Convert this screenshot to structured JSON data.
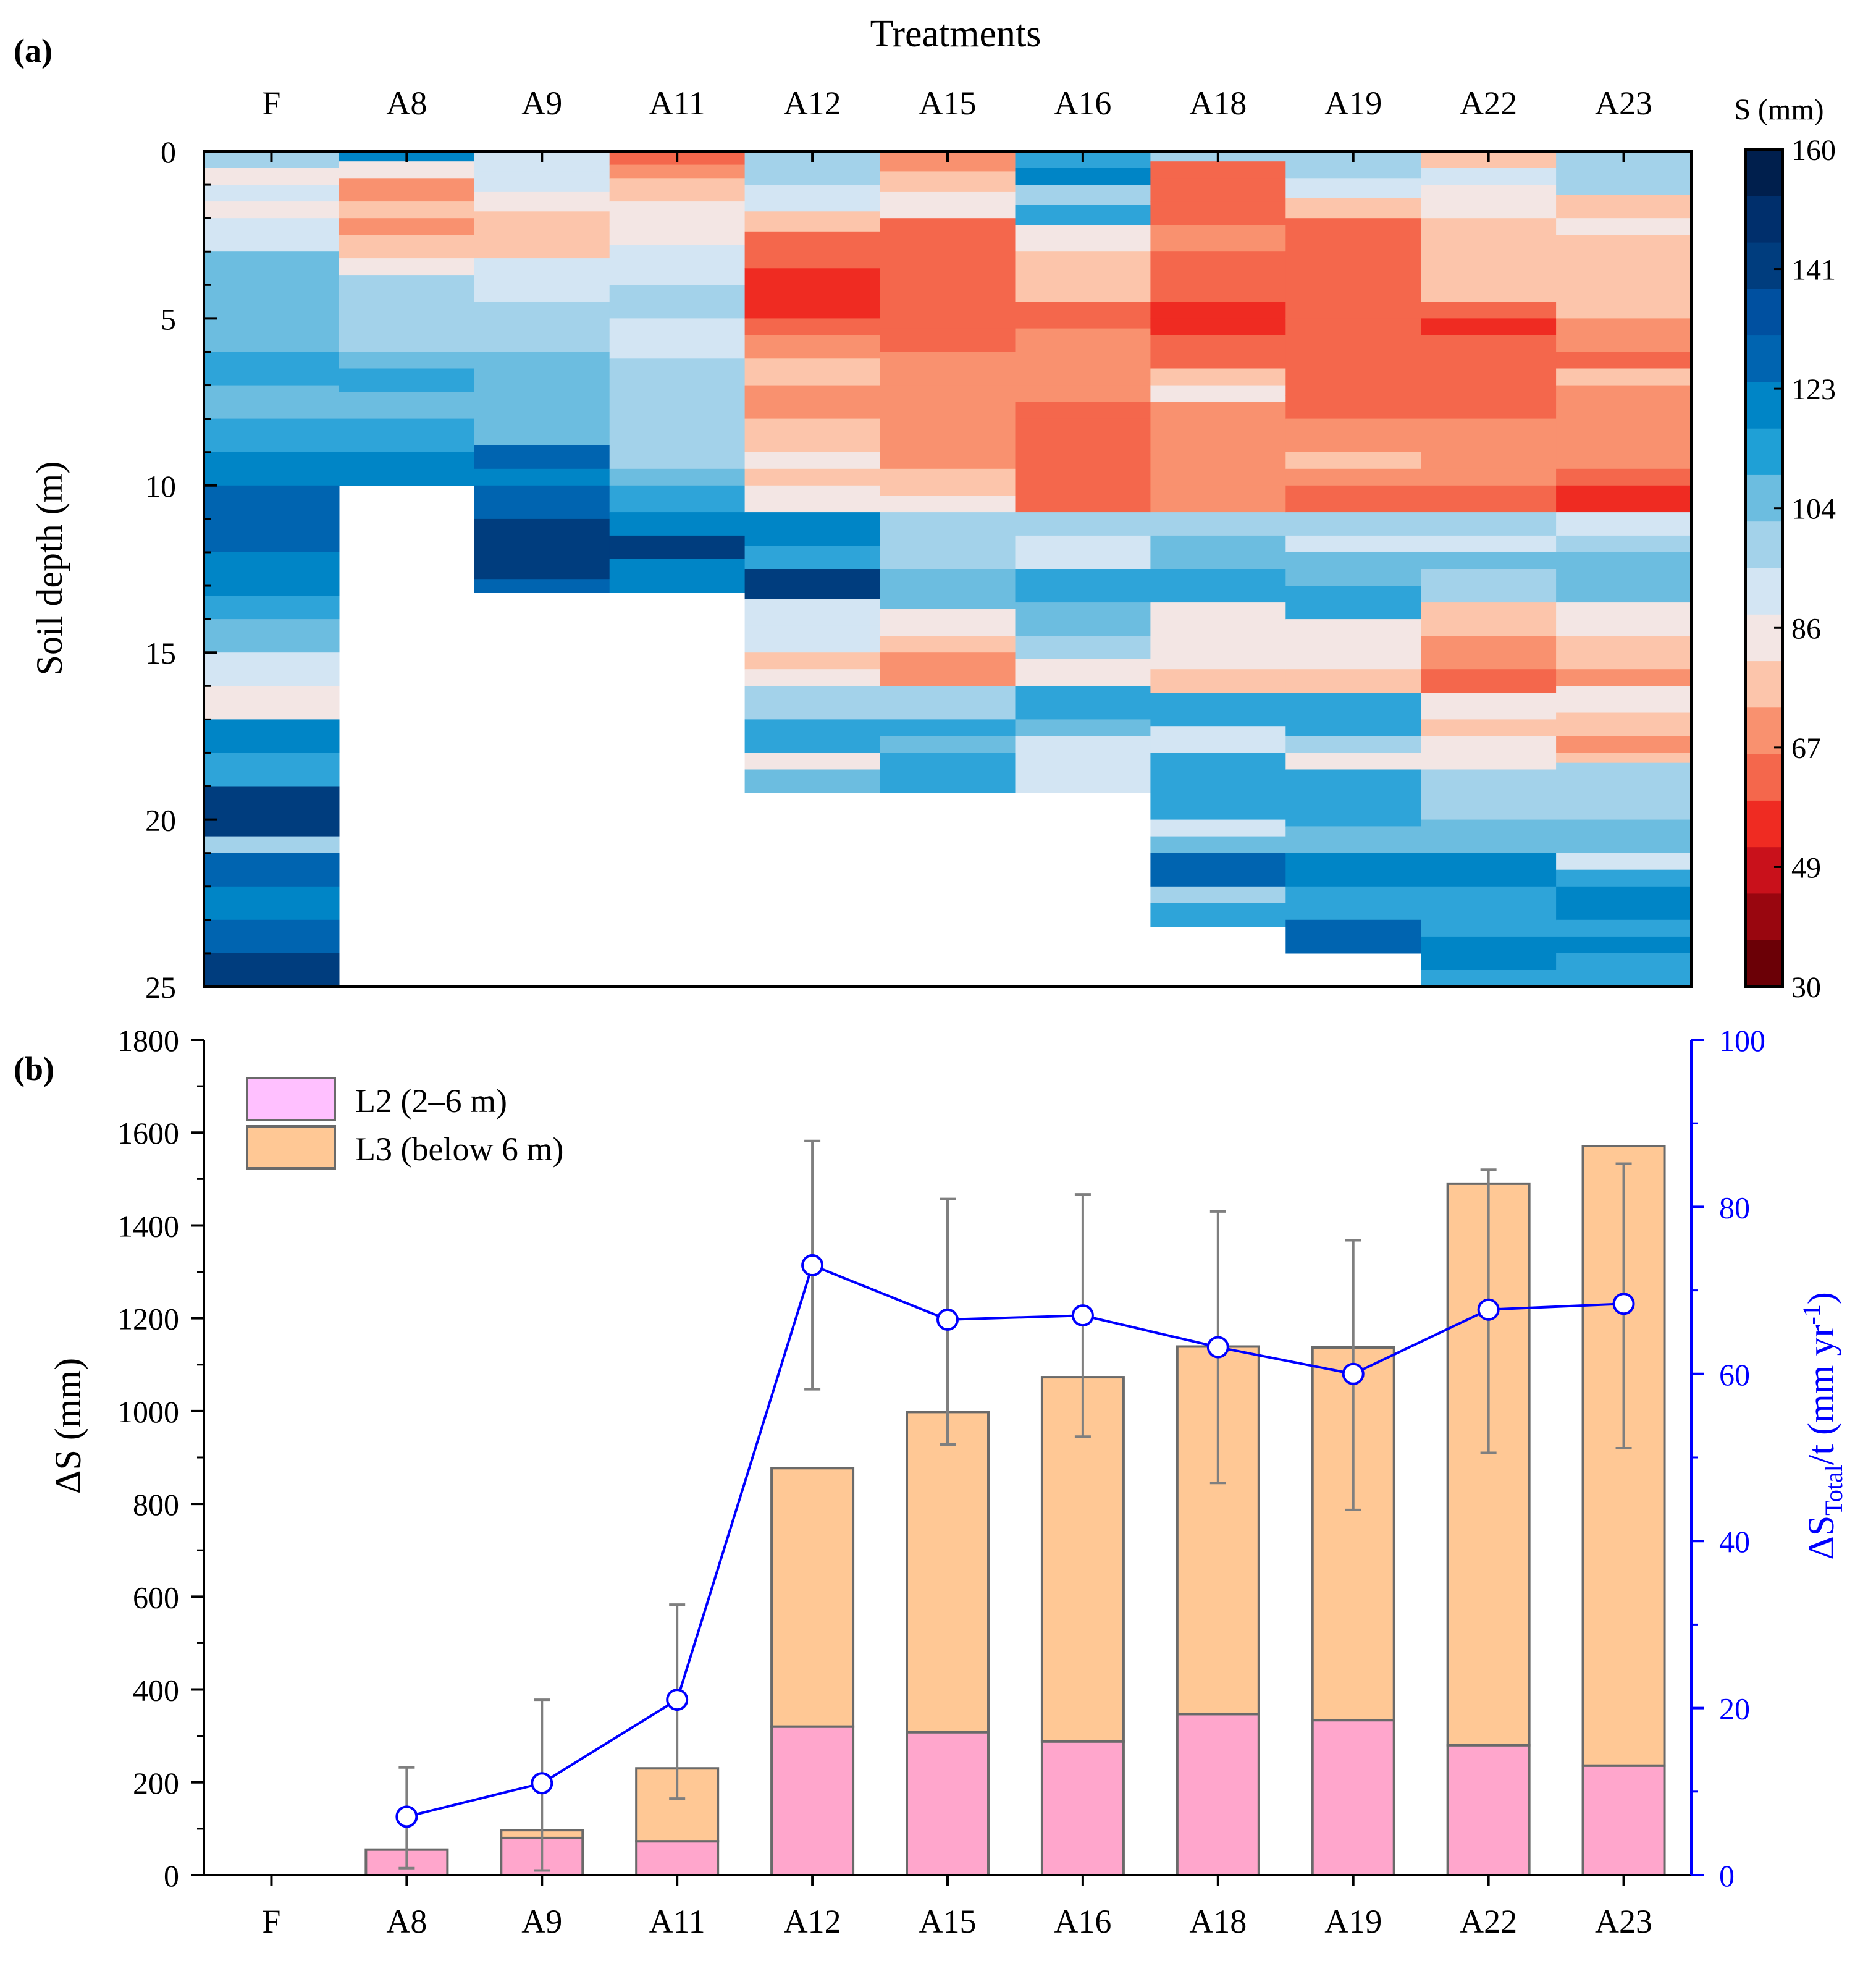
{
  "colors": {
    "l2": "#ffa6cc",
    "l3": "#ffc895",
    "bar_edge": "#6a6a6a",
    "err": "#7f7f7f",
    "line": "#0000ff",
    "colorbar": [
      "#ef2b22",
      "#f4674c",
      "#f9916f",
      "#fcc5ab",
      "#f3e6e4",
      "#d3e5f3",
      "#a3d2ea",
      "#6cbde0",
      "#2ea4d9",
      "#0085c6",
      "#0064b0",
      "#003d7e"
    ]
  },
  "chart_data": [
    {
      "type": "heatmap",
      "panel_label": "(a)",
      "title": "Treatments",
      "categories": [
        "F",
        "A8",
        "A9",
        "A11",
        "A12",
        "A15",
        "A16",
        "A18",
        "A19",
        "A22",
        "A23"
      ],
      "ylabel": "Soil depth (m)",
      "yticks": [
        0,
        5,
        10,
        15,
        20,
        25
      ],
      "ylim": [
        25,
        0
      ],
      "max_depth_m": [
        25,
        10,
        13.2,
        13.2,
        19.2,
        19.2,
        19.2,
        23.2,
        24,
        25,
        25
      ],
      "colorbar": {
        "title": "S (mm)",
        "ticks": [
          "160",
          "141",
          "123",
          "104",
          "86",
          "67",
          "49",
          "30"
        ],
        "range": [
          30,
          160
        ]
      },
      "profiles": [
        [
          [
            0,
            105
          ],
          [
            0.5,
            90
          ],
          [
            1,
            100
          ],
          [
            1.5,
            92
          ],
          [
            2,
            97
          ],
          [
            3,
            110
          ],
          [
            4,
            112
          ],
          [
            5.2,
            115
          ],
          [
            6,
            118
          ],
          [
            7,
            112
          ],
          [
            8,
            120
          ],
          [
            9,
            126
          ],
          [
            10,
            135
          ],
          [
            11,
            132
          ],
          [
            12,
            128
          ],
          [
            13.3,
            118
          ],
          [
            14,
            112
          ],
          [
            15,
            96
          ],
          [
            16,
            88
          ],
          [
            17,
            125
          ],
          [
            18,
            118
          ],
          [
            19,
            138
          ],
          [
            20,
            140
          ],
          [
            20.5,
            108
          ],
          [
            21,
            135
          ],
          [
            22,
            126
          ],
          [
            23,
            132
          ],
          [
            24,
            138
          ],
          [
            25,
            138
          ]
        ],
        [
          [
            0,
            128
          ],
          [
            0.3,
            90
          ],
          [
            0.8,
            75
          ],
          [
            1.5,
            80
          ],
          [
            2,
            78
          ],
          [
            2.5,
            84
          ],
          [
            3.2,
            90
          ],
          [
            3.7,
            104
          ],
          [
            5,
            106
          ],
          [
            6,
            112
          ],
          [
            6.5,
            118
          ],
          [
            7.2,
            114
          ],
          [
            8,
            116
          ],
          [
            9,
            124
          ],
          [
            10,
            124
          ]
        ],
        [
          [
            0,
            95
          ],
          [
            0.6,
            100
          ],
          [
            1.2,
            88
          ],
          [
            1.8,
            84
          ],
          [
            2.5,
            80
          ],
          [
            3.2,
            98
          ],
          [
            4.5,
            104
          ],
          [
            6,
            110
          ],
          [
            7,
            112
          ],
          [
            8,
            114
          ],
          [
            8.8,
            132
          ],
          [
            9.5,
            126
          ],
          [
            10,
            135
          ],
          [
            11,
            142
          ],
          [
            11.8,
            138
          ],
          [
            12.8,
            135
          ],
          [
            13.2,
            135
          ]
        ],
        [
          [
            0,
            70
          ],
          [
            0.4,
            78
          ],
          [
            0.8,
            85
          ],
          [
            1.5,
            88
          ],
          [
            2.2,
            93
          ],
          [
            2.8,
            97
          ],
          [
            4,
            104
          ],
          [
            5,
            98
          ],
          [
            6.2,
            104
          ],
          [
            9.5,
            110
          ],
          [
            10,
            118
          ],
          [
            10.8,
            126
          ],
          [
            11.5,
            138
          ],
          [
            12.2,
            128
          ],
          [
            13.2,
            128
          ]
        ],
        [
          [
            0,
            108
          ],
          [
            1,
            98
          ],
          [
            1.8,
            86
          ],
          [
            2.4,
            72
          ],
          [
            3.5,
            64
          ],
          [
            5,
            66
          ],
          [
            5.5,
            78
          ],
          [
            6.2,
            80
          ],
          [
            7,
            76
          ],
          [
            8,
            84
          ],
          [
            9,
            88
          ],
          [
            9.5,
            86
          ],
          [
            10,
            92
          ],
          [
            10.8,
            128
          ],
          [
            11.8,
            122
          ],
          [
            12.5,
            138
          ],
          [
            13.4,
            96
          ],
          [
            14.2,
            95
          ],
          [
            15,
            86
          ],
          [
            15.5,
            88
          ],
          [
            16,
            106
          ],
          [
            17,
            116
          ],
          [
            18,
            90
          ],
          [
            18.5,
            110
          ],
          [
            19.2,
            112
          ]
        ],
        [
          [
            0,
            78
          ],
          [
            0.6,
            86
          ],
          [
            1.2,
            90
          ],
          [
            2,
            70
          ],
          [
            4.5,
            68
          ],
          [
            5.3,
            66
          ],
          [
            6,
            76
          ],
          [
            7,
            76
          ],
          [
            7.5,
            78
          ],
          [
            9.5,
            82
          ],
          [
            10.3,
            88
          ],
          [
            10.8,
            104
          ],
          [
            12.5,
            112
          ],
          [
            13.7,
            88
          ],
          [
            14.5,
            84
          ],
          [
            15,
            76
          ],
          [
            16,
            104
          ],
          [
            17,
            118
          ],
          [
            17.5,
            110
          ],
          [
            18,
            122
          ],
          [
            19.2,
            122
          ]
        ],
        [
          [
            0,
            118
          ],
          [
            0.5,
            125
          ],
          [
            1,
            108
          ],
          [
            1.6,
            118
          ],
          [
            2.2,
            92
          ],
          [
            3,
            84
          ],
          [
            4.5,
            72
          ],
          [
            5.3,
            74
          ],
          [
            6,
            76
          ],
          [
            7,
            74
          ],
          [
            7.5,
            70
          ],
          [
            8,
            70
          ],
          [
            9,
            72
          ],
          [
            9.8,
            66
          ],
          [
            10.8,
            104
          ],
          [
            11.5,
            96
          ],
          [
            12.5,
            118
          ],
          [
            13.5,
            110
          ],
          [
            14.5,
            104
          ],
          [
            15.2,
            92
          ],
          [
            16,
            118
          ],
          [
            17,
            112
          ],
          [
            17.5,
            100
          ],
          [
            19.2,
            100
          ]
        ],
        [
          [
            0,
            104
          ],
          [
            0.3,
            72
          ],
          [
            0.8,
            68
          ],
          [
            1.5,
            72
          ],
          [
            2.2,
            74
          ],
          [
            3,
            68
          ],
          [
            4.5,
            64
          ],
          [
            5,
            58
          ],
          [
            5.5,
            66
          ],
          [
            6,
            70
          ],
          [
            6.5,
            84
          ],
          [
            7,
            94
          ],
          [
            7.5,
            76
          ],
          [
            9,
            74
          ],
          [
            10,
            74
          ],
          [
            10.8,
            104
          ],
          [
            11.5,
            112
          ],
          [
            12.5,
            118
          ],
          [
            13.5,
            92
          ],
          [
            15.5,
            86
          ],
          [
            16.2,
            120
          ],
          [
            17.2,
            98
          ],
          [
            18,
            122
          ],
          [
            20,
            100
          ],
          [
            20.5,
            112
          ],
          [
            21,
            132
          ],
          [
            22,
            108
          ],
          [
            22.5,
            118
          ],
          [
            23.2,
            118
          ]
        ],
        [
          [
            0,
            104
          ],
          [
            0.8,
            100
          ],
          [
            1.4,
            86
          ],
          [
            2,
            66
          ],
          [
            3,
            72
          ],
          [
            4,
            70
          ],
          [
            5,
            66
          ],
          [
            6,
            72
          ],
          [
            7.3,
            72
          ],
          [
            8,
            78
          ],
          [
            9,
            82
          ],
          [
            9.5,
            78
          ],
          [
            10,
            66
          ],
          [
            10.8,
            104
          ],
          [
            11.5,
            96
          ],
          [
            12,
            110
          ],
          [
            13,
            116
          ],
          [
            14,
            88
          ],
          [
            15.5,
            84
          ],
          [
            16.2,
            118
          ],
          [
            17.5,
            104
          ],
          [
            18,
            92
          ],
          [
            18.5,
            120
          ],
          [
            20.2,
            112
          ],
          [
            21,
            126
          ],
          [
            22,
            122
          ],
          [
            23,
            136
          ],
          [
            24,
            136
          ]
        ],
        [
          [
            0,
            86
          ],
          [
            0.5,
            98
          ],
          [
            1,
            92
          ],
          [
            1.8,
            88
          ],
          [
            2,
            82
          ],
          [
            4.5,
            66
          ],
          [
            5,
            62
          ],
          [
            5.5,
            70
          ],
          [
            6,
            72
          ],
          [
            8,
            74
          ],
          [
            9,
            76
          ],
          [
            9.5,
            78
          ],
          [
            10,
            66
          ],
          [
            10.8,
            104
          ],
          [
            11.5,
            100
          ],
          [
            12,
            110
          ],
          [
            12.5,
            104
          ],
          [
            13.5,
            82
          ],
          [
            14.5,
            78
          ],
          [
            15.5,
            72
          ],
          [
            16.2,
            92
          ],
          [
            17,
            86
          ],
          [
            17.5,
            88
          ],
          [
            18.5,
            106
          ],
          [
            20,
            110
          ],
          [
            21,
            126
          ],
          [
            22,
            116
          ],
          [
            22.5,
            118
          ],
          [
            23.5,
            126
          ],
          [
            24.5,
            118
          ],
          [
            25,
            118
          ]
        ],
        [
          [
            0,
            104
          ],
          [
            0.5,
            108
          ],
          [
            1.3,
            86
          ],
          [
            2,
            92
          ],
          [
            2.5,
            84
          ],
          [
            4,
            80
          ],
          [
            5,
            76
          ],
          [
            6,
            70
          ],
          [
            6.5,
            80
          ],
          [
            7,
            78
          ],
          [
            9.5,
            66
          ],
          [
            10,
            64
          ],
          [
            10.8,
            98
          ],
          [
            11.5,
            104
          ],
          [
            12,
            110
          ],
          [
            12.8,
            112
          ],
          [
            13.5,
            88
          ],
          [
            14.5,
            80
          ],
          [
            15.5,
            76
          ],
          [
            16,
            92
          ],
          [
            16.8,
            84
          ],
          [
            17.5,
            78
          ],
          [
            18,
            84
          ],
          [
            18.3,
            104
          ],
          [
            19.5,
            108
          ],
          [
            20,
            112
          ],
          [
            21,
            100
          ],
          [
            21.5,
            118
          ],
          [
            22,
            126
          ],
          [
            23,
            118
          ],
          [
            23.5,
            126
          ],
          [
            24,
            116
          ],
          [
            25,
            116
          ]
        ]
      ]
    },
    {
      "type": "bar",
      "panel_label": "(b)",
      "categories": [
        "F",
        "A8",
        "A9",
        "A11",
        "A12",
        "A15",
        "A16",
        "A18",
        "A19",
        "A22",
        "A23"
      ],
      "ylabel": "ΔS (mm)",
      "ylim": [
        0,
        1800
      ],
      "yticks": [
        0,
        200,
        400,
        600,
        800,
        1000,
        1200,
        1400,
        1600,
        1800
      ],
      "y2label": {
        "main": "ΔS",
        "sub": "Total",
        "mid": "/t (mm yr",
        "sup": "-1",
        "end": ")"
      },
      "y2lim": [
        0,
        100
      ],
      "y2ticks": [
        0,
        20,
        40,
        60,
        80,
        100
      ],
      "series": [
        {
          "name": "L2 (2–6 m)",
          "values": [
            0,
            55,
            80,
            73,
            320,
            308,
            288,
            347,
            334,
            280,
            236
          ]
        },
        {
          "name": "L3 (below 6 m)",
          "values": [
            0,
            0,
            17,
            157,
            557,
            690,
            785,
            792,
            803,
            1210,
            1335
          ]
        }
      ],
      "total_error": [
        null,
        [
          15,
          232
        ],
        [
          10,
          378
        ],
        [
          165,
          583
        ],
        [
          1047,
          1582
        ],
        [
          928,
          1457
        ],
        [
          945,
          1467
        ],
        [
          845,
          1430
        ],
        [
          787,
          1368
        ],
        [
          910,
          1520
        ],
        [
          920,
          1533
        ]
      ],
      "rate_series": {
        "values": [
          null,
          7,
          11,
          21,
          73,
          66.5,
          67,
          63.2,
          60,
          67.7,
          68.4
        ]
      },
      "legend_position": "top-left"
    }
  ]
}
